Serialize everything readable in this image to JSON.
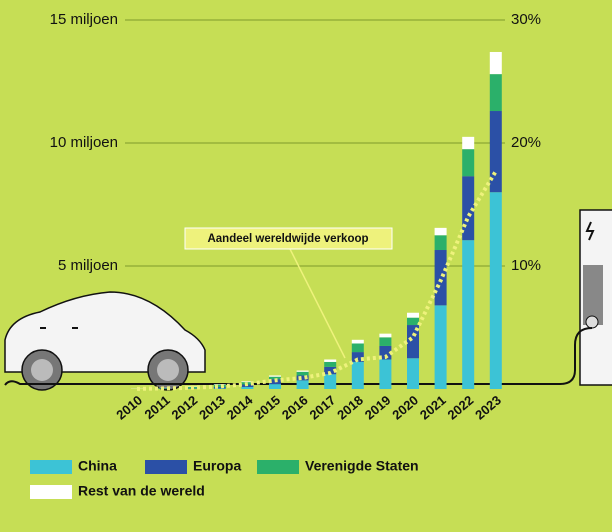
{
  "chart_data": {
    "type": "bar",
    "stacked": true,
    "annotation": "Aandeel wereldwijde verkoop",
    "categories": [
      "2010",
      "2011",
      "2012",
      "2013",
      "2014",
      "2015",
      "2016",
      "2017",
      "2018",
      "2019",
      "2020",
      "2021",
      "2022",
      "2023"
    ],
    "series": [
      {
        "name": "China",
        "color": "#3cc3d6",
        "values": [
          0,
          0.01,
          0.01,
          0.02,
          0.08,
          0.2,
          0.35,
          0.6,
          1.1,
          1.2,
          1.25,
          3.4,
          6.05,
          8.0
        ]
      },
      {
        "name": "Europa",
        "color": "#2b50a6",
        "values": [
          0,
          0.01,
          0.02,
          0.06,
          0.1,
          0.2,
          0.2,
          0.3,
          0.4,
          0.55,
          1.35,
          2.25,
          2.6,
          3.3
        ]
      },
      {
        "name": "Verenigde Staten",
        "color": "#2bb06a",
        "values": [
          0,
          0.02,
          0.05,
          0.1,
          0.1,
          0.1,
          0.15,
          0.2,
          0.35,
          0.35,
          0.3,
          0.6,
          1.1,
          1.5
        ]
      },
      {
        "name": "Rest van de wereld",
        "color": "#ffffff",
        "values": [
          0.01,
          0.01,
          0.02,
          0.02,
          0.03,
          0.05,
          0.05,
          0.1,
          0.15,
          0.15,
          0.2,
          0.3,
          0.5,
          0.9
        ]
      },
      {
        "type": "line",
        "axis": "y2",
        "color": "#eef27c",
        "values": [
          0.01,
          0.05,
          0.1,
          0.2,
          0.4,
          0.7,
          0.9,
          1.3,
          2.4,
          2.6,
          4.2,
          8.8,
          14,
          17.7
        ]
      }
    ],
    "ylim": [
      0,
      15
    ],
    "yticks": [
      {
        "value": 5,
        "label": "5 miljoen"
      },
      {
        "value": 10,
        "label": "10 miljoen"
      },
      {
        "value": 15,
        "label": "15 miljoen"
      }
    ],
    "y2lim": [
      0,
      30
    ],
    "y2ticks": [
      {
        "value": 10,
        "label": "10%"
      },
      {
        "value": 20,
        "label": "20%"
      },
      {
        "value": 30,
        "label": "30%"
      }
    ],
    "grid": true
  }
}
